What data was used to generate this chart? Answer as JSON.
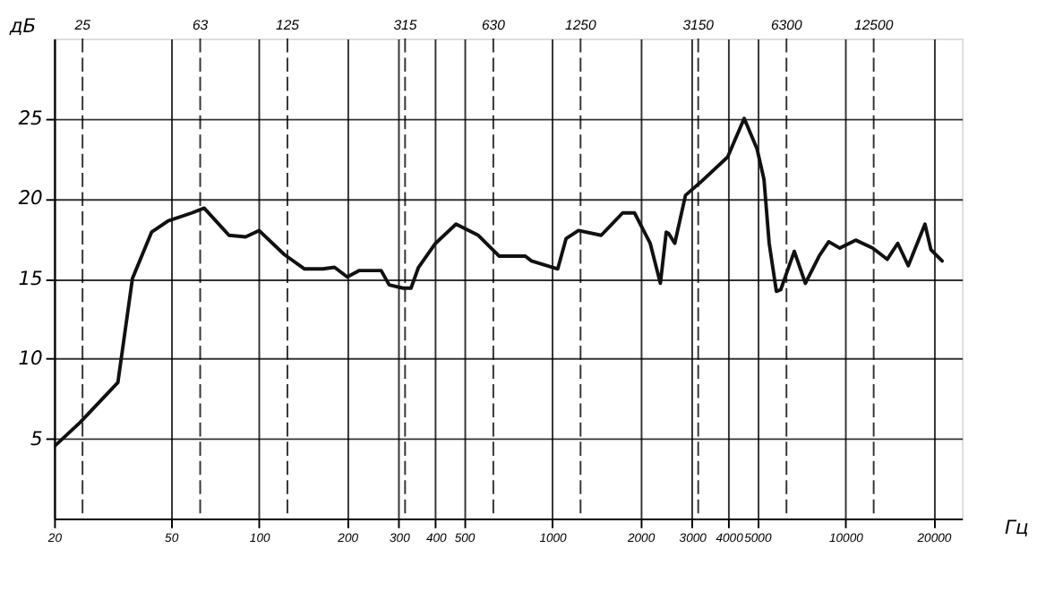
{
  "chart_data": {
    "type": "line",
    "ylabel": "дБ",
    "xlabel": "Гц",
    "log": "x",
    "xlim": [
      20,
      25000
    ],
    "xticks": [
      20,
      50,
      100,
      200,
      300,
      400,
      500,
      1000,
      2000,
      3000,
      4000,
      5000,
      10000,
      20000
    ],
    "ref_lines": [
      {
        "axis": "x",
        "value": 25,
        "label": "25",
        "line_style": "dashed"
      },
      {
        "axis": "x",
        "value": 63,
        "label": "63",
        "line_style": "dashed"
      },
      {
        "axis": "x",
        "value": 125,
        "label": "125",
        "line_style": "dashed"
      },
      {
        "axis": "x",
        "value": 315,
        "label": "315",
        "line_style": "dashed"
      },
      {
        "axis": "x",
        "value": 630,
        "label": "630",
        "line_style": "dashed"
      },
      {
        "axis": "x",
        "value": 1250,
        "label": "1250",
        "line_style": "dashed"
      },
      {
        "axis": "x",
        "value": 3150,
        "label": "3150",
        "line_style": "dashed"
      },
      {
        "axis": "x",
        "value": 6300,
        "label": "6300",
        "line_style": "dashed"
      },
      {
        "axis": "x",
        "value": 12500,
        "label": "12500",
        "line_style": "dashed"
      }
    ],
    "ylim": [
      0,
      30
    ],
    "yticks": [
      5,
      10,
      15,
      20,
      25
    ],
    "grid": true,
    "marker": "none",
    "line_style": "solid",
    "series": [
      {
        "color": "#111111",
        "x": [
          20,
          24.5,
          33,
          37,
          43,
          49,
          59,
          65,
          79,
          90,
          100,
          122,
          143,
          165,
          181,
          200,
          220,
          261,
          278,
          310,
          330,
          350,
          400,
          470,
          560,
          660,
          810,
          850,
          1045,
          1116,
          1230,
          1470,
          1740,
          1910,
          2160,
          2340,
          2450,
          2500,
          2620,
          2850,
          3200,
          3970,
          4520,
          5000,
          5280,
          5500,
          5820,
          6020,
          6700,
          7310,
          8140,
          8780,
          9580,
          10850,
          12400,
          13900,
          15100,
          16400,
          18700,
          19600,
          21400
        ],
        "values": [
          4.5,
          6.0,
          8.5,
          15.0,
          17.9,
          18.6,
          19.1,
          19.4,
          17.7,
          17.6,
          18.0,
          16.5,
          15.6,
          15.6,
          15.7,
          15.1,
          15.5,
          15.5,
          14.6,
          14.4,
          14.4,
          15.7,
          17.2,
          18.4,
          17.7,
          16.4,
          16.4,
          16.1,
          15.6,
          17.5,
          18.0,
          17.7,
          19.1,
          19.1,
          17.2,
          14.7,
          17.9,
          17.8,
          17.2,
          20.2,
          21.0,
          22.6,
          25.0,
          23.1,
          21.2,
          17.2,
          14.2,
          14.3,
          16.7,
          14.7,
          16.4,
          17.3,
          16.9,
          17.4,
          16.9,
          16.2,
          17.2,
          15.8,
          18.4,
          16.8,
          16.1
        ]
      }
    ]
  }
}
